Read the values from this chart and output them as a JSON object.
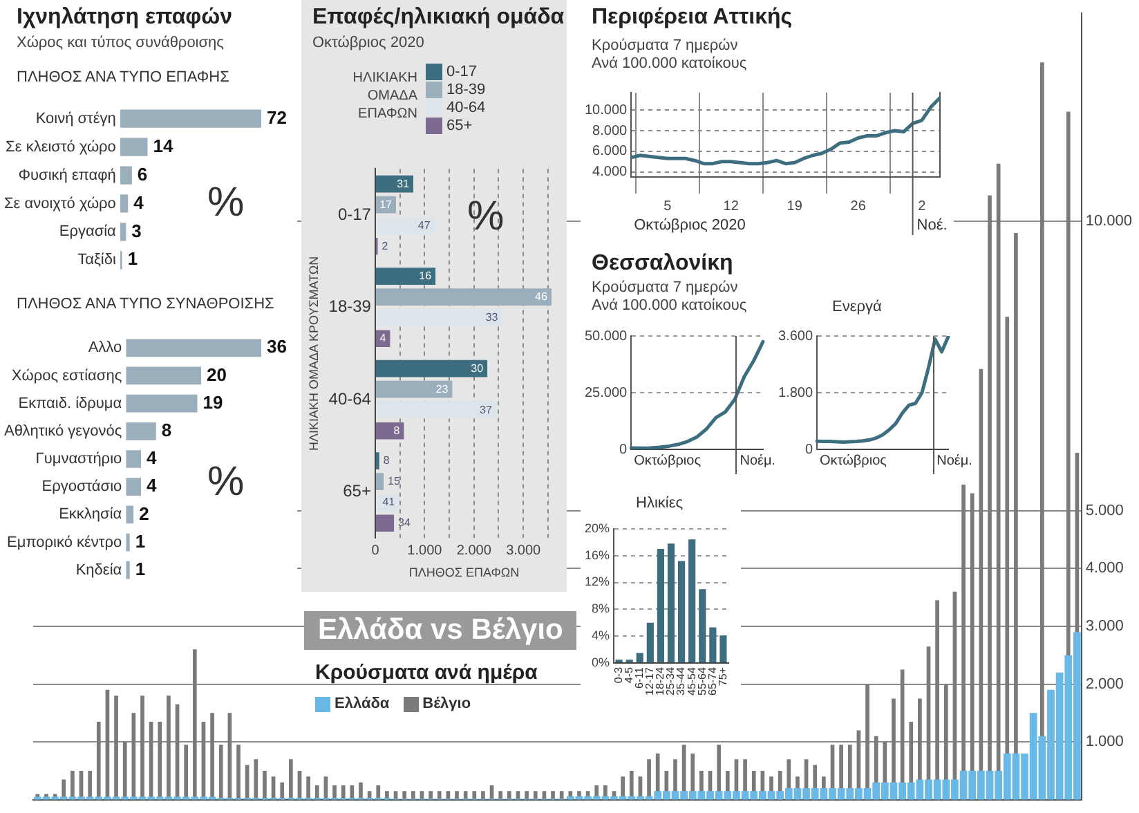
{
  "chart_data": [
    {
      "type": "bar",
      "orientation": "horizontal",
      "title": "Ιχνηλάτηση επαφών",
      "subtitle": "Χώρος και τύπος συνάθροισης",
      "annotations": [
        "ΠΛΗΘΟΣ ΑΝΑ ΤΥΠΟ ΕΠΑΦΗΣ",
        "%"
      ],
      "categories": [
        "Κοινή στέγη",
        "Σε κλειστό χώρο",
        "Φυσική επαφή",
        "Σε ανοιχτό χώρο",
        "Εργασία",
        "Ταξίδι"
      ],
      "values": [
        72,
        14,
        6,
        4,
        3,
        1
      ],
      "color": "#9aaebb",
      "data_labels": true,
      "grid": false
    },
    {
      "type": "bar",
      "orientation": "horizontal",
      "title": "ΠΛΗΘΟΣ ΑΝΑ ΤΥΠΟ ΣΥΝΑΘΡΟΙΣΗΣ",
      "annotations": [
        "%"
      ],
      "categories": [
        "Αλλο",
        "Χώρος εστίασης",
        "Εκπαιδ. ίδρυμα",
        "Αθλητικό γεγονός",
        "Γυμναστήριο",
        "Εργοστάσιο",
        "Εκκλησία",
        "Εμπορικό κέντρο",
        "Κηδεία"
      ],
      "values": [
        36,
        20,
        19,
        8,
        4,
        4,
        2,
        1,
        1
      ],
      "color": "#9aaebb",
      "data_labels": true,
      "grid": false
    },
    {
      "type": "bar",
      "orientation": "horizontal",
      "title": "Επαφές/ηλικιακή ομάδα",
      "subtitle": "Οκτώβριος 2020",
      "legend_title": "ΗΛΙΚΙΑΚΗ ΟΜΑΔΑ ΕΠΑΦΩΝ",
      "ylabel": "ΗΛΙΚΙΑΚΗ ΟΜΑΔΑ ΚΡΟΥΣΜΑΤΩΝ",
      "xlabel": "ΠΛΗΘΟΣ ΕΠΑΦΩΝ",
      "legend": "top",
      "grid": "x",
      "annotations": [
        "%",
        {
          "text": "31",
          "x": 770,
          "y": "0-17"
        },
        {
          "text": "17",
          "x": 420,
          "y": "0-17"
        },
        {
          "text": "47",
          "x": 1200,
          "y": "0-17"
        },
        {
          "text": "2",
          "x": 50,
          "y": "0-17"
        },
        {
          "text": "16",
          "x": 1220,
          "y": "18-39"
        },
        {
          "text": "46",
          "x": 3570,
          "y": "18-39"
        },
        {
          "text": "33",
          "x": 2570,
          "y": "18-39"
        },
        {
          "text": "4",
          "x": 300,
          "y": "18-39"
        },
        {
          "text": "30",
          "x": 2270,
          "y": "40-64"
        },
        {
          "text": "23",
          "x": 1560,
          "y": "40-64"
        },
        {
          "text": "37",
          "x": 2450,
          "y": "40-64"
        },
        {
          "text": "8",
          "x": 580,
          "y": "40-64"
        },
        {
          "text": "8",
          "x": 80,
          "y": "65+"
        },
        {
          "text": "15",
          "x": 170,
          "y": "65+"
        },
        {
          "text": "41",
          "x": 480,
          "y": "65+"
        },
        {
          "text": "34",
          "x": 380,
          "y": "65+"
        }
      ],
      "categories": [
        "0-17",
        "18-39",
        "40-64",
        "65+"
      ],
      "xlim": [
        0,
        3600
      ],
      "xticks": [
        0,
        {
          "value": 500,
          "label": null
        },
        {
          "value": 1000,
          "label": "1.000"
        },
        {
          "value": 1500,
          "label": null
        },
        {
          "value": 2000,
          "label": "2.000"
        },
        {
          "value": 2500,
          "label": null
        },
        {
          "value": 3000,
          "label": "3.000"
        },
        {
          "value": 3500,
          "label": null
        }
      ],
      "series": [
        {
          "name": "0-17",
          "color": "#3d6e80",
          "values": [
            770,
            1220,
            2270,
            80
          ]
        },
        {
          "name": "18-39",
          "color": "#9aaebb",
          "values": [
            420,
            3570,
            1560,
            170
          ]
        },
        {
          "name": "40-64",
          "color": "#dde5ea",
          "values": [
            1200,
            2570,
            2450,
            480
          ]
        },
        {
          "name": "65+",
          "color": "#7d6a91",
          "values": [
            50,
            300,
            580,
            380
          ]
        }
      ]
    },
    {
      "type": "line",
      "title": "Περιφέρεια Αττικής",
      "subtitle": "Κρούσματα 7 ημερών\nΑνά 100.000 κατοίκους",
      "grid": true,
      "marker": "none",
      "line_style": "solid",
      "color": "#3d6e80",
      "x": [
        "2020-10-01",
        "2020-10-02",
        "2020-10-03",
        "2020-10-04",
        "2020-10-05",
        "2020-10-06",
        "2020-10-07",
        "2020-10-08",
        "2020-10-09",
        "2020-10-10",
        "2020-10-11",
        "2020-10-12",
        "2020-10-13",
        "2020-10-14",
        "2020-10-15",
        "2020-10-16",
        "2020-10-17",
        "2020-10-18",
        "2020-10-19",
        "2020-10-20",
        "2020-10-21",
        "2020-10-22",
        "2020-10-23",
        "2020-10-24",
        "2020-10-25",
        "2020-10-26",
        "2020-10-27",
        "2020-10-28",
        "2020-10-29",
        "2020-10-30",
        "2020-10-31",
        "2020-11-01",
        "2020-11-02",
        "2020-11-03",
        "2020-11-04"
      ],
      "values": [
        5400,
        5600,
        5500,
        5400,
        5300,
        5300,
        5300,
        5100,
        4800,
        4800,
        5000,
        5000,
        4900,
        4800,
        4800,
        4900,
        5100,
        4800,
        4900,
        5300,
        5600,
        5800,
        6200,
        6800,
        6900,
        7300,
        7500,
        7500,
        7800,
        8000,
        7900,
        8700,
        9000,
        10300,
        11200
      ],
      "xlim": [
        "2020-10-01",
        "2020-11-04"
      ],
      "xticks": [
        {
          "value": "2020-10-05",
          "label": "5"
        },
        {
          "value": "2020-10-12",
          "label": "12"
        },
        {
          "value": "2020-10-19",
          "label": "19"
        },
        {
          "value": "2020-10-26",
          "label": "26"
        },
        {
          "value": "2020-11-02",
          "label": "2"
        }
      ],
      "ylim": [
        3500,
        11700
      ],
      "yticks": [
        {
          "value": 4000,
          "label": "4.000"
        },
        {
          "value": 6000,
          "label": "6.000"
        },
        {
          "value": 8000,
          "label": "8.000"
        },
        {
          "value": 10000,
          "label": "10.000"
        }
      ],
      "ref_lines": [
        {
          "axis": "x",
          "value": "2020-11-01",
          "color": "#555555"
        }
      ],
      "annotations": [
        "Οκτώβριος 2020",
        "Νοέ."
      ]
    },
    {
      "type": "line",
      "title": "Θεσσαλονίκη",
      "subtitle": "Κρούσματα 7 ημερών\nΑνά 100.000 κατοίκους",
      "grid": "y",
      "marker": "none",
      "line_style": "solid",
      "color": "#3d6e80",
      "categories": [
        null,
        null,
        null,
        null,
        null,
        null,
        null,
        null,
        null,
        null,
        null,
        null,
        null,
        null,
        null
      ],
      "values": [
        600,
        500,
        600,
        900,
        1400,
        2200,
        3500,
        5500,
        9000,
        14000,
        16500,
        22000,
        32000,
        39000,
        47500
      ],
      "ylim": [
        0,
        50000
      ],
      "yticks": [
        0,
        {
          "value": 25000,
          "label": "25.000"
        },
        {
          "value": 50000,
          "label": "50.000"
        }
      ],
      "annotations": [
        "Οκτώβριος",
        "Νοέμ."
      ]
    },
    {
      "type": "line",
      "title": "Ενεργά",
      "grid": "y",
      "marker": "none",
      "line_style": "solid",
      "color": "#3d6e80",
      "categories": [
        null,
        null,
        null,
        null,
        null,
        null,
        null,
        null,
        null,
        null,
        null,
        null,
        null,
        null,
        null,
        null,
        null,
        null,
        null,
        null,
        null
      ],
      "values": [
        260,
        250,
        250,
        240,
        230,
        240,
        250,
        270,
        300,
        360,
        460,
        620,
        820,
        1150,
        1400,
        1460,
        1800,
        2600,
        3500,
        3100,
        3580
      ],
      "ylim": [
        0,
        3600
      ],
      "yticks": [
        0,
        {
          "value": 1800,
          "label": "1.800"
        },
        {
          "value": 3600,
          "label": "3.600"
        }
      ],
      "annotations": [
        "Οκτώβριος",
        "Νοέμ."
      ]
    },
    {
      "type": "bar",
      "title": "Ηλικίες",
      "grid": "y",
      "color": "#3d6e80",
      "categories": [
        "0-3",
        "4-5",
        "6-11",
        "12-17",
        "18-24",
        "25-34",
        "35-44",
        "45-54",
        "55-64",
        "65-74",
        "75+"
      ],
      "values": [
        0.5,
        0.5,
        1.5,
        6,
        17,
        17.8,
        15.2,
        18.4,
        11,
        5.3,
        4.1
      ],
      "ylim": [
        0,
        20
      ],
      "yticks": [
        {
          "value": 0,
          "label": "0%"
        },
        {
          "value": 4,
          "label": "4%"
        },
        {
          "value": 8,
          "label": "8%"
        },
        {
          "value": 12,
          "label": "12%"
        },
        {
          "value": 16,
          "label": "16%"
        },
        {
          "value": 20,
          "label": "20%"
        }
      ]
    },
    {
      "type": "bar",
      "title": "Ελλάδα vs Βέλγιο",
      "subtitle": "Κρούσματα ανά ημέρα",
      "legend": "left",
      "grid": "y",
      "categories": [
        null,
        null,
        null,
        null,
        null,
        null,
        null,
        null,
        null,
        null,
        null,
        null,
        null,
        null,
        null,
        null,
        null,
        null,
        null,
        null,
        null,
        null,
        null,
        null,
        null,
        null,
        null,
        null,
        null,
        null,
        null,
        null,
        null,
        null,
        null,
        null,
        null,
        null,
        null,
        null,
        null,
        null,
        null,
        null,
        null,
        null,
        null,
        null,
        null,
        null,
        null,
        null,
        null,
        null,
        null,
        null,
        null,
        null,
        null,
        null,
        null,
        null,
        null,
        null,
        null,
        null,
        null,
        null,
        null,
        null,
        null,
        null,
        null,
        null,
        null,
        null,
        null,
        null,
        null,
        null,
        null,
        null,
        null,
        null,
        null,
        null,
        null,
        null,
        null,
        null,
        null,
        null,
        null,
        null,
        null,
        null,
        null,
        null,
        null,
        null,
        null,
        null,
        null,
        null,
        null,
        null,
        null,
        null,
        null,
        null,
        null,
        null,
        null,
        null,
        null,
        null,
        null,
        null,
        null,
        null
      ],
      "ylim": [
        0,
        13600
      ],
      "yticks": [
        {
          "value": 1000,
          "label": "1.000"
        },
        {
          "value": 2000,
          "label": "2.000"
        },
        {
          "value": 3000,
          "label": "3.000"
        },
        {
          "value": 4000,
          "label": "4.000"
        },
        {
          "value": 5000,
          "label": "5.000"
        },
        {
          "value": 10000,
          "label": "10.000"
        }
      ],
      "series": [
        {
          "name": "Ελλάδα",
          "color": "#6ab8e6",
          "values": [
            50,
            50,
            50,
            50,
            50,
            50,
            50,
            50,
            50,
            50,
            50,
            50,
            50,
            50,
            50,
            50,
            50,
            50,
            50,
            50,
            50,
            30,
            30,
            30,
            30,
            30,
            30,
            30,
            30,
            30,
            30,
            30,
            30,
            30,
            30,
            30,
            30,
            30,
            30,
            30,
            30,
            20,
            20,
            20,
            20,
            20,
            20,
            20,
            20,
            20,
            20,
            20,
            20,
            20,
            20,
            20,
            20,
            20,
            20,
            20,
            20,
            60,
            60,
            60,
            60,
            60,
            60,
            60,
            60,
            60,
            60,
            150,
            150,
            150,
            150,
            150,
            150,
            150,
            150,
            150,
            150,
            150,
            150,
            150,
            150,
            150,
            200,
            200,
            200,
            200,
            200,
            200,
            200,
            200,
            200,
            200,
            300,
            300,
            300,
            300,
            300,
            350,
            350,
            350,
            350,
            350,
            500,
            500,
            500,
            500,
            500,
            800,
            800,
            800,
            1500,
            1100,
            1900,
            2200,
            2500,
            2900
          ]
        },
        {
          "name": "Βέλγιο",
          "color": "#7a7a7a",
          "values": [
            100,
            100,
            100,
            350,
            500,
            500,
            500,
            1350,
            1900,
            1800,
            1000,
            1500,
            1800,
            1350,
            1350,
            1800,
            1650,
            950,
            2600,
            1350,
            1500,
            950,
            1500,
            950,
            600,
            700,
            500,
            400,
            300,
            700,
            500,
            400,
            250,
            400,
            250,
            250,
            250,
            300,
            150,
            250,
            150,
            150,
            150,
            150,
            150,
            150,
            150,
            150,
            150,
            150,
            150,
            150,
            250,
            150,
            150,
            150,
            150,
            150,
            150,
            150,
            150,
            150,
            150,
            150,
            250,
            250,
            150,
            400,
            500,
            400,
            700,
            800,
            500,
            700,
            950,
            800,
            500,
            500,
            950,
            500,
            700,
            700,
            500,
            500,
            400,
            500,
            700,
            400,
            700,
            600,
            400,
            950,
            950,
            950,
            1200,
            2000,
            1100,
            1000,
            1750,
            2250,
            1350,
            1750,
            2650,
            3450,
            2000,
            3600,
            5450,
            5300,
            7450,
            10450,
            11000,
            8350,
            9800,
            null,
            null,
            12750,
            null,
            null,
            11900,
            6000
          ]
        }
      ]
    }
  ]
}
